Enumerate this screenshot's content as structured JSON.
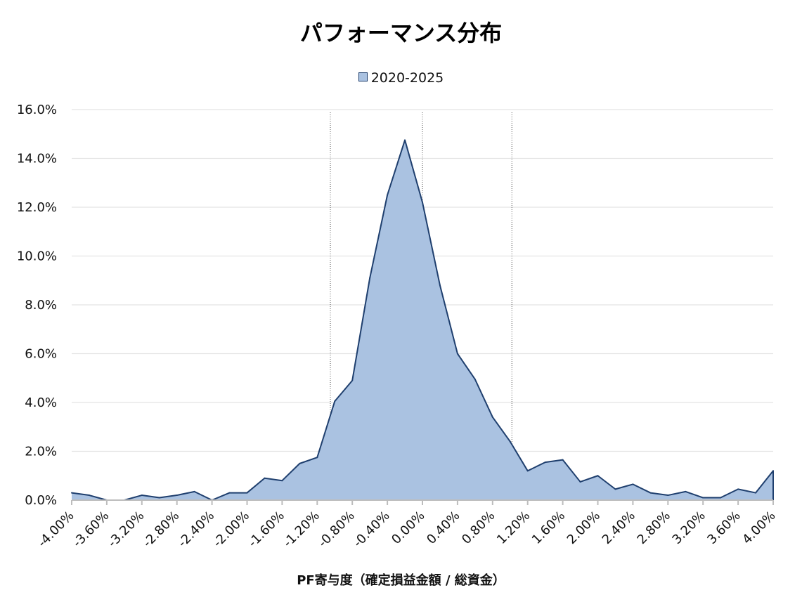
{
  "chart_data": {
    "type": "area",
    "title": "パフォーマンス分布",
    "xlabel": "PF寄与度（確定損益金額 / 総資金）",
    "ylabel": "",
    "series": [
      {
        "name": "2020-2025",
        "color": "#aac2e1",
        "line_color": "#1f3f6e",
        "x": [
          -4.0,
          -3.8,
          -3.6,
          -3.4,
          -3.2,
          -3.0,
          -2.8,
          -2.6,
          -2.4,
          -2.2,
          -2.0,
          -1.8,
          -1.6,
          -1.4,
          -1.2,
          -1.0,
          -0.8,
          -0.6,
          -0.4,
          -0.2,
          0.0,
          0.2,
          0.4,
          0.6,
          0.8,
          1.0,
          1.2,
          1.4,
          1.6,
          1.8,
          2.0,
          2.2,
          2.4,
          2.6,
          2.8,
          3.0,
          3.2,
          3.4,
          3.6,
          3.8,
          4.0
        ],
        "values": [
          0.3,
          0.2,
          0.0,
          0.0,
          0.2,
          0.1,
          0.2,
          0.35,
          0.0,
          0.3,
          0.3,
          0.9,
          0.8,
          1.5,
          1.75,
          4.05,
          4.9,
          9.1,
          12.5,
          14.75,
          12.2,
          8.8,
          6.0,
          4.95,
          3.4,
          2.4,
          1.2,
          1.55,
          1.65,
          0.75,
          1.0,
          0.45,
          0.65,
          0.3,
          0.2,
          0.35,
          0.1,
          0.1,
          0.45,
          0.3,
          1.2
        ]
      }
    ],
    "xlim": [
      -4.0,
      4.0
    ],
    "ylim": [
      0,
      16
    ],
    "x_ticks": [
      -4.0,
      -3.6,
      -3.2,
      -2.8,
      -2.4,
      -2.0,
      -1.6,
      -1.2,
      -0.8,
      -0.4,
      0.0,
      0.4,
      0.8,
      1.2,
      1.6,
      2.0,
      2.4,
      2.8,
      3.2,
      3.6,
      4.0
    ],
    "x_tick_labels": [
      "-4.00%",
      "-3.60%",
      "-3.20%",
      "-2.80%",
      "-2.40%",
      "-2.00%",
      "-1.60%",
      "-1.20%",
      "-0.80%",
      "-0.40%",
      "0.00%",
      "0.40%",
      "0.80%",
      "1.20%",
      "1.60%",
      "2.00%",
      "2.40%",
      "2.80%",
      "3.20%",
      "3.60%",
      "4.00%"
    ],
    "y_ticks": [
      0,
      2,
      4,
      6,
      8,
      10,
      12,
      14,
      16
    ],
    "y_tick_labels": [
      "0.0%",
      "2.0%",
      "4.0%",
      "6.0%",
      "8.0%",
      "10.0%",
      "12.0%",
      "14.0%",
      "16.0%"
    ],
    "vertical_reference_lines": [
      -1.05,
      0.0,
      1.02
    ],
    "grid": "horizontal",
    "legend_position": "top-center"
  }
}
